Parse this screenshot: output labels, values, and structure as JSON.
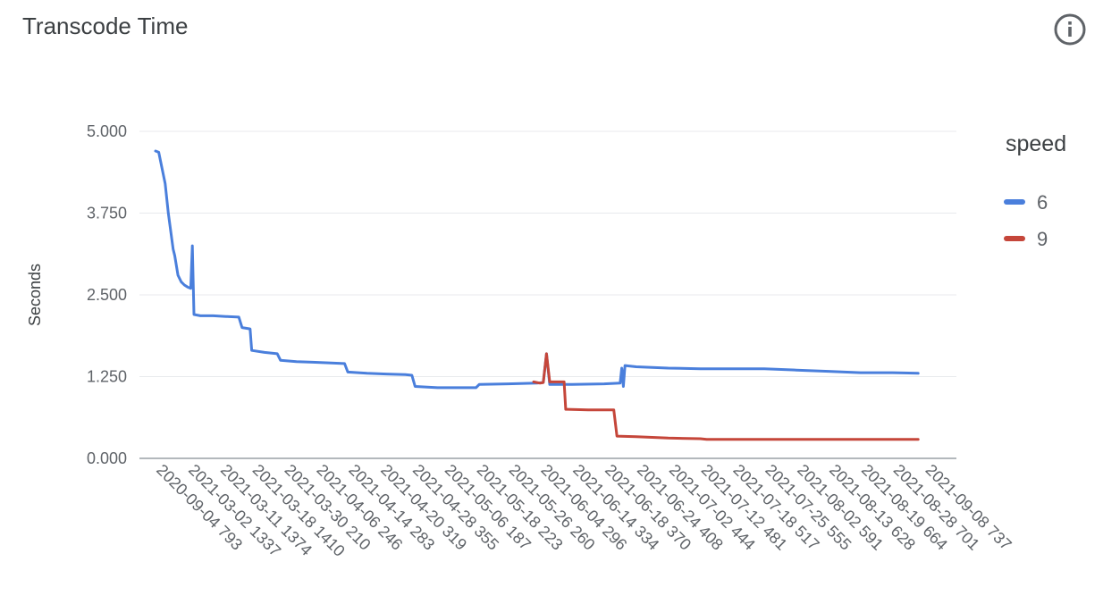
{
  "header": {
    "title": "Transcode Time",
    "info_icon": "info-circle-icon"
  },
  "chart_data": {
    "type": "line",
    "title": "Transcode Time",
    "xlabel": "",
    "ylabel": "Seconds",
    "ylim": [
      0,
      5
    ],
    "yticks": [
      "0.000",
      "1.250",
      "2.500",
      "3.750",
      "5.000"
    ],
    "grid": true,
    "legend": {
      "title": "speed",
      "position": "right"
    },
    "x_ticks": [
      "2020-09-04 793",
      "2021-03-02 1337",
      "2021-03-11 1374",
      "2021-03-18 1410",
      "2021-03-30 210",
      "2021-04-06 246",
      "2021-04-14 283",
      "2021-04-20 319",
      "2021-04-28 355",
      "2021-05-06 187",
      "2021-05-18 223",
      "2021-05-26 260",
      "2021-06-04 296",
      "2021-06-14 334",
      "2021-06-18 370",
      "2021-06-24 408",
      "2021-07-02 444",
      "2021-07-12 481",
      "2021-07-18 517",
      "2021-07-25 555",
      "2021-08-02 591",
      "2021-08-13 628",
      "2021-08-19 664",
      "2021-08-28 701",
      "2021-09-08 737"
    ],
    "series": [
      {
        "name": "6",
        "color": "#4a7fdc",
        "points": [
          [
            0,
            4.7
          ],
          [
            0.1,
            4.68
          ],
          [
            0.3,
            4.2
          ],
          [
            0.4,
            3.75
          ],
          [
            0.55,
            3.2
          ],
          [
            0.6,
            3.1
          ],
          [
            0.7,
            2.8
          ],
          [
            0.8,
            2.7
          ],
          [
            0.9,
            2.65
          ],
          [
            1.0,
            2.62
          ],
          [
            1.1,
            2.6
          ],
          [
            1.15,
            3.25
          ],
          [
            1.2,
            2.2
          ],
          [
            1.4,
            2.18
          ],
          [
            1.8,
            2.18
          ],
          [
            2.2,
            2.17
          ],
          [
            2.6,
            2.16
          ],
          [
            2.7,
            2.0
          ],
          [
            2.95,
            1.98
          ],
          [
            3.0,
            1.65
          ],
          [
            3.4,
            1.62
          ],
          [
            3.8,
            1.6
          ],
          [
            3.9,
            1.5
          ],
          [
            4.4,
            1.48
          ],
          [
            4.9,
            1.47
          ],
          [
            5.4,
            1.46
          ],
          [
            5.9,
            1.45
          ],
          [
            6.0,
            1.32
          ],
          [
            6.6,
            1.3
          ],
          [
            7.2,
            1.29
          ],
          [
            7.8,
            1.28
          ],
          [
            8.0,
            1.27
          ],
          [
            8.1,
            1.1
          ],
          [
            8.8,
            1.08
          ],
          [
            9.5,
            1.08
          ],
          [
            10.0,
            1.08
          ],
          [
            10.1,
            1.13
          ],
          [
            11.0,
            1.14
          ],
          [
            11.9,
            1.15
          ],
          [
            12.1,
            1.16
          ],
          [
            12.2,
            1.6
          ],
          [
            12.3,
            1.13
          ],
          [
            13.0,
            1.13
          ],
          [
            14.0,
            1.14
          ],
          [
            14.5,
            1.15
          ],
          [
            14.55,
            1.38
          ],
          [
            14.6,
            1.1
          ],
          [
            14.65,
            1.42
          ],
          [
            15.0,
            1.4
          ],
          [
            16.0,
            1.38
          ],
          [
            17.0,
            1.37
          ],
          [
            18.0,
            1.37
          ],
          [
            19.0,
            1.37
          ],
          [
            20.0,
            1.35
          ],
          [
            21.0,
            1.33
          ],
          [
            22.0,
            1.31
          ],
          [
            23.0,
            1.31
          ],
          [
            23.8,
            1.3
          ]
        ]
      },
      {
        "name": "9",
        "color": "#c5463a",
        "points": [
          [
            11.8,
            1.17
          ],
          [
            12.0,
            1.15
          ],
          [
            12.1,
            1.16
          ],
          [
            12.2,
            1.6
          ],
          [
            12.3,
            1.17
          ],
          [
            12.6,
            1.17
          ],
          [
            12.75,
            1.17
          ],
          [
            12.8,
            0.75
          ],
          [
            13.5,
            0.74
          ],
          [
            14.3,
            0.74
          ],
          [
            14.4,
            0.34
          ],
          [
            15.0,
            0.33
          ],
          [
            16.0,
            0.31
          ],
          [
            17.0,
            0.3
          ],
          [
            17.2,
            0.29
          ],
          [
            18.0,
            0.29
          ],
          [
            19.0,
            0.29
          ],
          [
            20.0,
            0.29
          ],
          [
            21.0,
            0.29
          ],
          [
            22.0,
            0.29
          ],
          [
            23.0,
            0.29
          ],
          [
            23.8,
            0.29
          ]
        ]
      }
    ]
  }
}
